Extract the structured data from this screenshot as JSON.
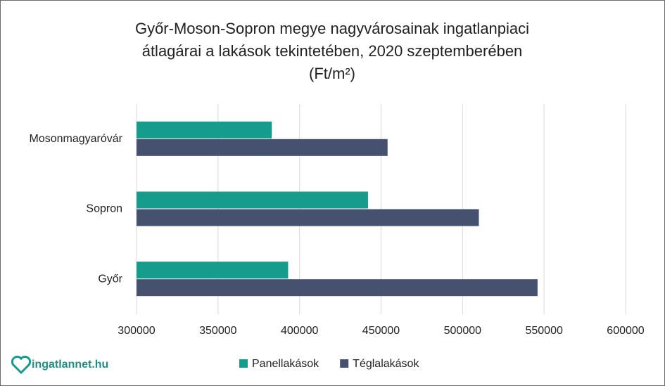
{
  "chart_data": {
    "type": "bar",
    "orientation": "horizontal",
    "title": [
      "Győr-Moson-Sopron megye nagyvárosainak ingatlanpiaci",
      "átlagárai a lakások tekintetében, 2020 szeptemberében",
      "(Ft/m²)"
    ],
    "categories": [
      "Mosonmagyaróvár",
      "Sopron",
      "Győr"
    ],
    "series": [
      {
        "name": "Panellakások",
        "color": "#169c8c",
        "values": [
          383000,
          442000,
          393000
        ]
      },
      {
        "name": "Téglalakások",
        "color": "#465170",
        "values": [
          454000,
          510000,
          546000
        ]
      }
    ],
    "xlim": [
      300000,
      600000
    ],
    "xticks": [
      300000,
      350000,
      400000,
      450000,
      500000,
      550000,
      600000
    ],
    "grid": true,
    "legend": "bottom"
  },
  "logo": "ingatlannet.hu"
}
